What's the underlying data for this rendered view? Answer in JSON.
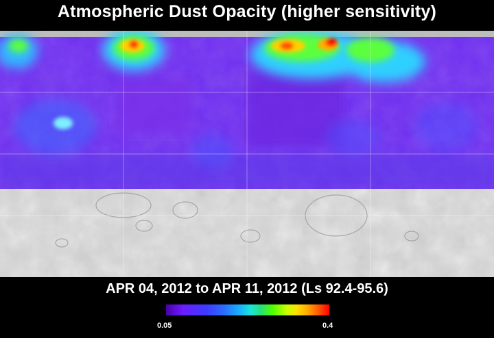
{
  "title": "Atmospheric Dust Opacity (higher sensitivity)",
  "date_range": "APR 04, 2012 to APR 11, 2012 (Ls 92.4-95.6)",
  "colorbar": {
    "min_label": "0.05",
    "max_label": "0.4",
    "min_value": 0.05,
    "max_value": 0.4
  }
}
